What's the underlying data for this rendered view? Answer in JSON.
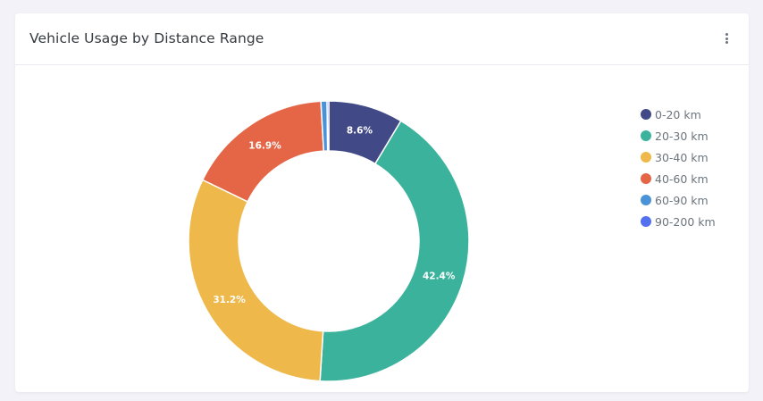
{
  "card": {
    "title": "Vehicle Usage by Distance Range",
    "menu_icon": "more-vertical-icon"
  },
  "chart_data": {
    "type": "pie",
    "variant": "donut",
    "title": "Vehicle Usage by Distance Range",
    "categories": [
      "0-20 km",
      "20-30 km",
      "30-40 km",
      "40-60 km",
      "60-90 km",
      "90-200 km"
    ],
    "values": [
      8.6,
      42.4,
      31.2,
      16.9,
      0.7,
      0.2
    ],
    "data_labels": [
      "8.6%",
      "42.4%",
      "31.2%",
      "16.9%",
      "",
      ""
    ],
    "colors": [
      "#414a86",
      "#3bb39c",
      "#eeb84a",
      "#e46646",
      "#4a93d8",
      "#5270f0"
    ],
    "legend_position": "right"
  }
}
